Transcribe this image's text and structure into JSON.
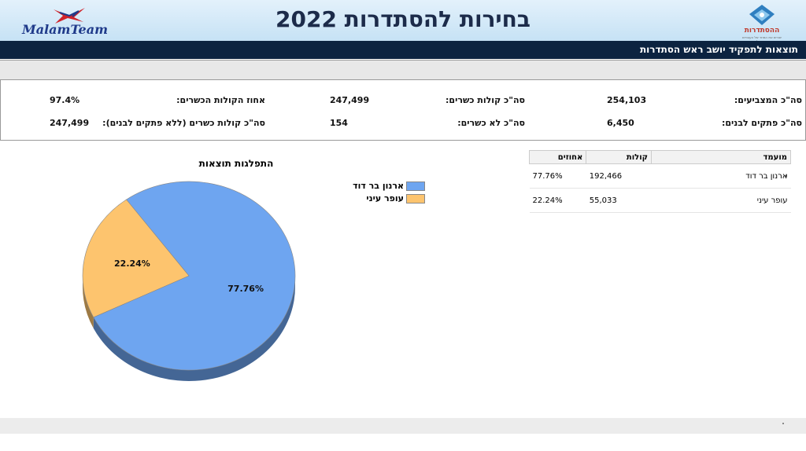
{
  "header": {
    "title": "בחירות להסתדרות 2022",
    "brand_left": "MalamTeam",
    "brand_right": "ההסתדרות",
    "brand_right_sub": "יוצרים את המחר של העובדים בישראל"
  },
  "section": {
    "title": "תוצאות לתפקיד יושב ראש הסתדרות"
  },
  "stats": {
    "voters_label": "סה\"כ המצביעים:",
    "voters_value": "254,103",
    "valid_label": "סה\"כ קולות כשרים:",
    "valid_value": "247,499",
    "valid_pct_label": "אחוז הקולות הכשרים:",
    "valid_pct_value": "97.4%",
    "blank_label": "סה\"כ פתקים לבנים:",
    "blank_value": "6,450",
    "invalid_label": "סה\"כ לא כשרים:",
    "invalid_value": "154",
    "valid_noblank_label": "סה\"כ קולות כשרים (ללא פתקים לבנים):",
    "valid_noblank_value": "247,499"
  },
  "table": {
    "headers": [
      "מועמד",
      "קולות",
      "אחוזים"
    ],
    "rows": [
      {
        "candidate": "ארנון בר דוד",
        "votes": "192,466",
        "percent": "77.76%"
      },
      {
        "candidate": "עופר עיני",
        "votes": "55,033",
        "percent": "22.24%"
      }
    ]
  },
  "chart_data": {
    "type": "pie",
    "title": "התפלגות תוצאות",
    "categories": [
      "ארנון בר דוד",
      "עופר עיני"
    ],
    "values": [
      77.76,
      22.24
    ],
    "labels": [
      "77.76%",
      "22.24%"
    ],
    "colors": [
      "#6ea5f0",
      "#fdc46e"
    ],
    "legend_position": "top-right"
  }
}
